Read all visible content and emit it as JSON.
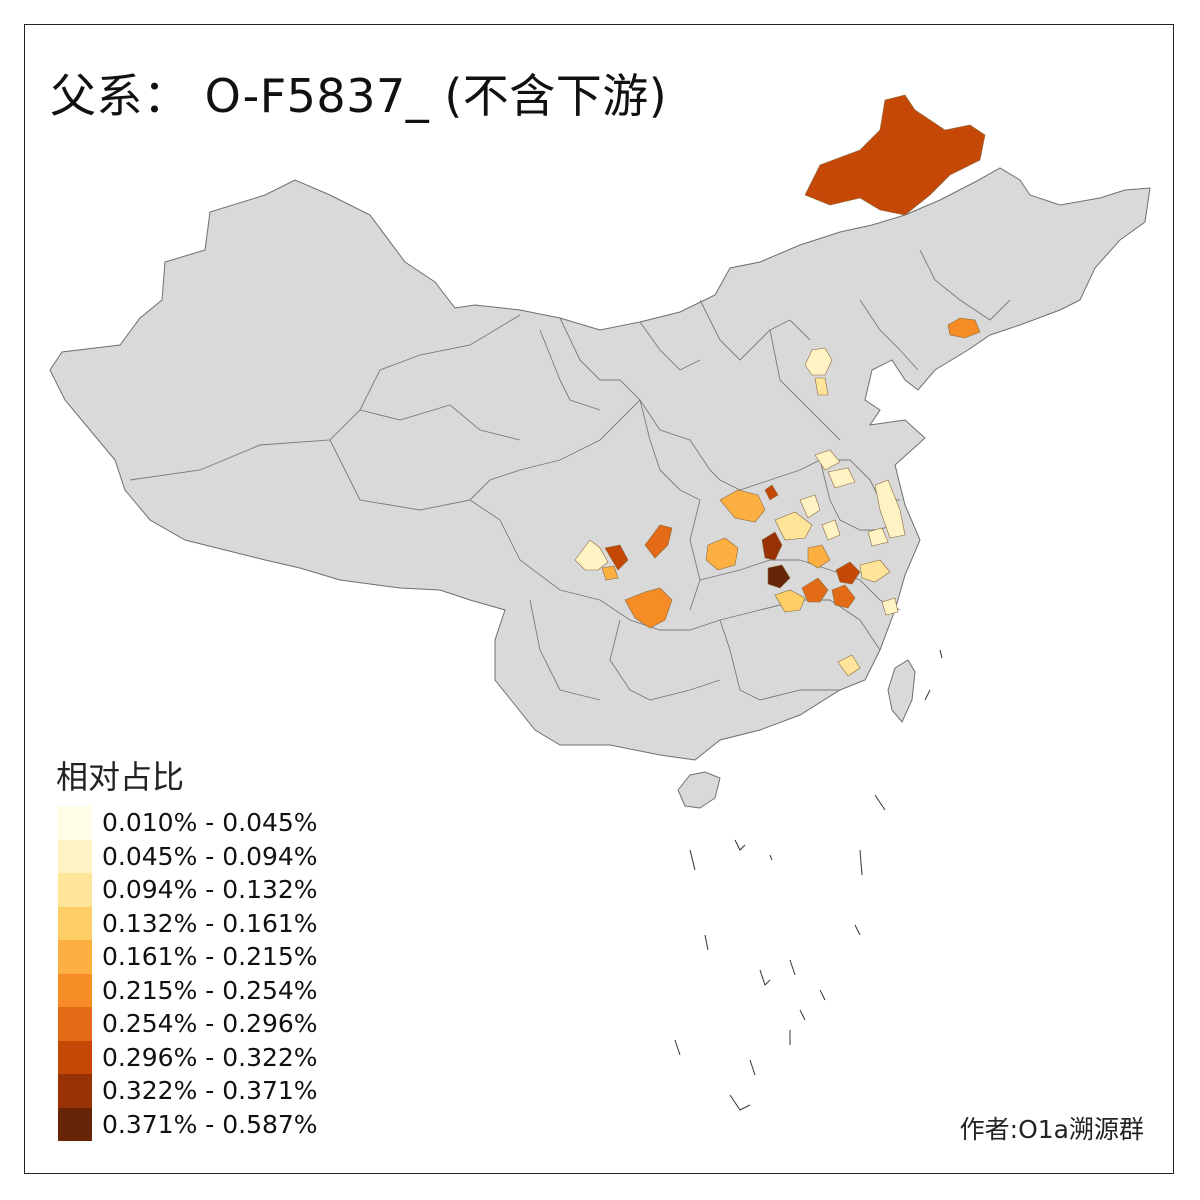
{
  "title": "父系： O-F5837_ (不含下游)",
  "legend": {
    "title": "相对占比",
    "classes": [
      {
        "label": "0.010% - 0.045%",
        "color": "#FFFDE6"
      },
      {
        "label": "0.045% - 0.094%",
        "color": "#FFF3C3"
      },
      {
        "label": "0.094% - 0.132%",
        "color": "#FEE59A"
      },
      {
        "label": "0.132% - 0.161%",
        "color": "#FECF66"
      },
      {
        "label": "0.161% - 0.215%",
        "color": "#FDB041"
      },
      {
        "label": "0.215% - 0.254%",
        "color": "#F68C26"
      },
      {
        "label": "0.254% - 0.296%",
        "color": "#E36A16"
      },
      {
        "label": "0.296% - 0.322%",
        "color": "#C64806"
      },
      {
        "label": "0.322% - 0.371%",
        "color": "#983104"
      },
      {
        "label": "0.371% - 0.587%",
        "color": "#662506"
      }
    ]
  },
  "credit": "作者:O1a溯源群",
  "base_color": "#D9D9D9",
  "border_color": "#7a7a7a"
}
